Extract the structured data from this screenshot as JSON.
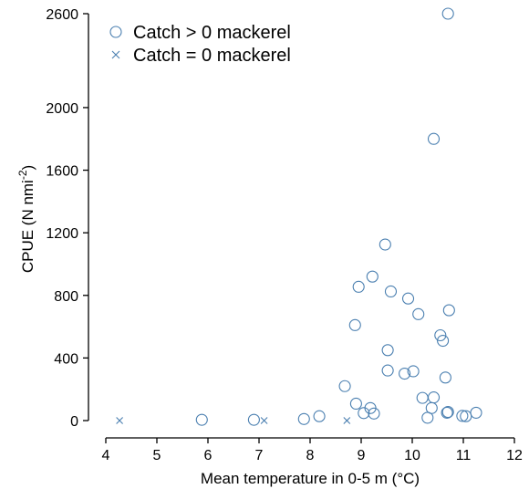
{
  "chart_data": {
    "type": "scatter",
    "xlabel": "Mean temperature in 0-5 m (°C)",
    "ylabel_main": "CPUE (N nmi",
    "ylabel_sup": "-2",
    "ylabel_tail": ")",
    "xlim": [
      4,
      12
    ],
    "ylim": [
      0,
      2600
    ],
    "x_ticks": [
      4,
      5,
      6,
      7,
      8,
      9,
      10,
      11,
      12
    ],
    "y_ticks": [
      0,
      400,
      800,
      1200,
      1600,
      2000,
      2600
    ],
    "grid": false,
    "legend_position": "top-left",
    "marker_color": "#4a7fb0",
    "series": [
      {
        "name": "Catch > 0 mackerel",
        "marker": "circle",
        "points": [
          [
            5.88,
            5
          ],
          [
            6.9,
            5
          ],
          [
            7.88,
            10
          ],
          [
            8.18,
            28
          ],
          [
            8.68,
            220
          ],
          [
            8.9,
            108
          ],
          [
            9.05,
            48
          ],
          [
            9.18,
            80
          ],
          [
            9.25,
            45
          ],
          [
            8.88,
            610
          ],
          [
            8.95,
            855
          ],
          [
            9.22,
            920
          ],
          [
            9.47,
            1125
          ],
          [
            9.52,
            450
          ],
          [
            9.52,
            320
          ],
          [
            9.58,
            825
          ],
          [
            9.85,
            300
          ],
          [
            9.92,
            780
          ],
          [
            10.02,
            315
          ],
          [
            10.12,
            680
          ],
          [
            10.2,
            145
          ],
          [
            10.3,
            18
          ],
          [
            10.38,
            80
          ],
          [
            10.42,
            148
          ],
          [
            10.42,
            1800
          ],
          [
            10.55,
            545
          ],
          [
            10.6,
            510
          ],
          [
            10.65,
            275
          ],
          [
            10.68,
            50
          ],
          [
            10.7,
            55
          ],
          [
            10.7,
            2600
          ],
          [
            10.72,
            705
          ],
          [
            10.98,
            30
          ],
          [
            11.05,
            28
          ],
          [
            11.25,
            50
          ]
        ]
      },
      {
        "name": "Catch = 0 mackerel",
        "marker": "x",
        "points": [
          [
            4.27,
            0
          ],
          [
            7.1,
            0
          ],
          [
            8.72,
            0
          ]
        ]
      }
    ]
  }
}
